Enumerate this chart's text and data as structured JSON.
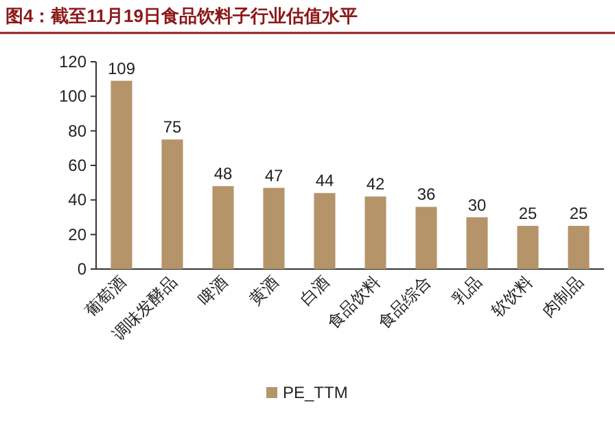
{
  "chart_data": {
    "type": "bar",
    "title": "图4：截至11月19日食品饮料子行业估值水平",
    "categories": [
      "葡萄酒",
      "调味发酵品",
      "啤酒",
      "黄酒",
      "白酒",
      "食品饮料",
      "食品综合",
      "乳品",
      "软饮料",
      "肉制品"
    ],
    "series": [
      {
        "name": "PE_TTM",
        "color": "#b5946a",
        "values": [
          109,
          75,
          48,
          47,
          44,
          42,
          36,
          30,
          25,
          25
        ]
      }
    ],
    "ylim": [
      0,
      120
    ],
    "yticks": [
      0,
      20,
      40,
      60,
      80,
      100,
      120
    ],
    "data_labels": true,
    "legend": "bottom",
    "grid": false
  }
}
